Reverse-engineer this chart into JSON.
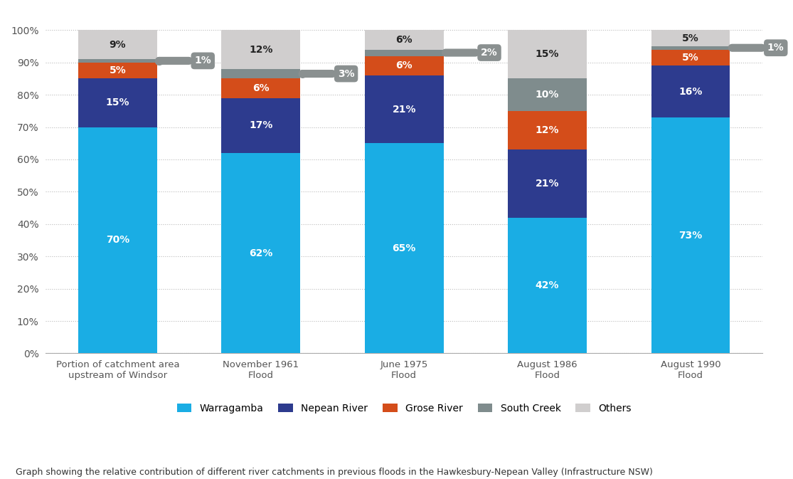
{
  "categories": [
    "Portion of catchment area\nupstream of Windsor",
    "November 1961\nFlood",
    "June 1975\nFlood",
    "August 1986\nFlood",
    "August 1990\nFlood"
  ],
  "warragamba": [
    70,
    62,
    65,
    42,
    73
  ],
  "nepean": [
    15,
    17,
    21,
    21,
    16
  ],
  "grose": [
    5,
    6,
    6,
    12,
    5
  ],
  "south_creek": [
    1,
    3,
    2,
    10,
    1
  ],
  "others": [
    9,
    12,
    6,
    15,
    5
  ],
  "callout_bars": [
    0,
    1,
    2,
    4
  ],
  "callout_texts": [
    "1%",
    "3%",
    "2%",
    "1%"
  ],
  "colors": {
    "warragamba": "#1aade4",
    "nepean": "#2d3b8e",
    "grose": "#d44d1a",
    "south_creek": "#7f8c8d",
    "others": "#d0cece"
  },
  "callout_color": "#8a9090",
  "bar_width": 0.55,
  "yticks": [
    0,
    10,
    20,
    30,
    40,
    50,
    60,
    70,
    80,
    90,
    100
  ],
  "ytick_labels": [
    "0%",
    "10%",
    "20%",
    "30%",
    "40%",
    "50%",
    "60%",
    "70%",
    "80%",
    "90%",
    "100%"
  ],
  "caption": "Graph showing the relative contribution of different river catchments in previous floods in the Hawkesbury-Nepean Valley (Infrastructure NSW)"
}
